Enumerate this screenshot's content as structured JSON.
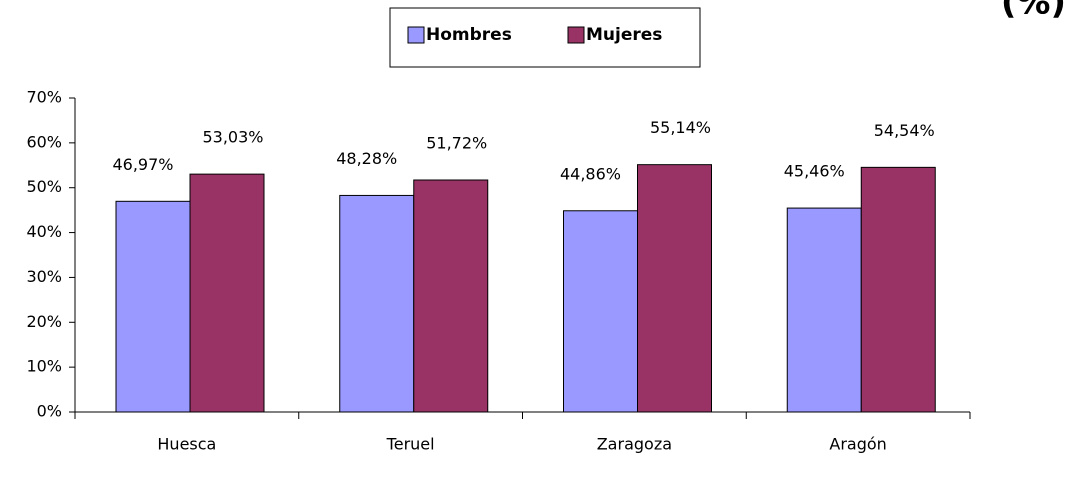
{
  "chart_data": {
    "type": "bar",
    "title": "(%)",
    "categories": [
      "Huesca",
      "Teruel",
      "Zaragoza",
      "Aragón"
    ],
    "series": [
      {
        "name": "Hombres",
        "color": "#9999ff",
        "values": [
          46.97,
          48.28,
          44.86,
          45.46
        ],
        "value_labels": [
          "46,97%",
          "48,28%",
          "44,86%",
          "45,46%"
        ]
      },
      {
        "name": "Mujeres",
        "color": "#993366",
        "values": [
          53.03,
          51.72,
          55.14,
          54.54
        ],
        "value_labels": [
          "53,03%",
          "51,72%",
          "55,14%",
          "54,54%"
        ]
      }
    ],
    "ylim": [
      0,
      70
    ],
    "yticks": [
      {
        "value": 0,
        "label": "0%"
      },
      {
        "value": 10,
        "label": "10%"
      },
      {
        "value": 20,
        "label": "20%"
      },
      {
        "value": 30,
        "label": "30%"
      },
      {
        "value": 40,
        "label": "40%"
      },
      {
        "value": 50,
        "label": "50%"
      },
      {
        "value": 60,
        "label": "60%"
      },
      {
        "value": 70,
        "label": "70%"
      }
    ],
    "legend": "top"
  }
}
